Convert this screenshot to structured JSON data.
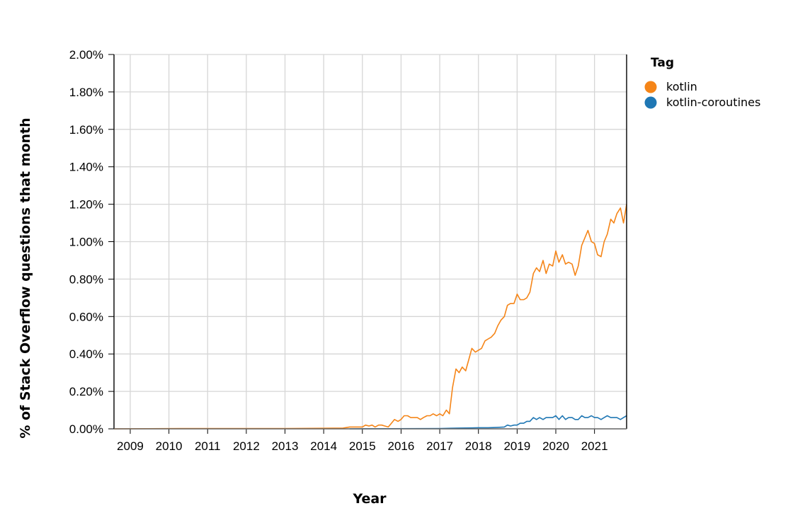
{
  "chart_data": {
    "type": "line",
    "title": "",
    "xlabel": "Year",
    "ylabel": "% of Stack Overflow questions that month",
    "x_range": [
      2008.58,
      2021.83
    ],
    "ylim": [
      0,
      0.02
    ],
    "x_ticks": [
      2009,
      2010,
      2011,
      2012,
      2013,
      2014,
      2015,
      2016,
      2017,
      2018,
      2019,
      2020,
      2021
    ],
    "x_tick_labels": [
      "2009",
      "2010",
      "2011",
      "2012",
      "2013",
      "2014",
      "2015",
      "2016",
      "2017",
      "2018",
      "2019",
      "2020",
      "2021"
    ],
    "y_ticks": [
      0,
      0.002,
      0.004,
      0.006,
      0.008,
      0.01,
      0.012,
      0.014,
      0.016,
      0.018,
      0.02
    ],
    "y_tick_labels": [
      "0.00%",
      "0.20%",
      "0.40%",
      "0.60%",
      "0.80%",
      "1.00%",
      "1.20%",
      "1.40%",
      "1.60%",
      "1.80%",
      "2.00%"
    ],
    "grid": true,
    "legend": {
      "title": "Tag",
      "position": "right"
    },
    "series": [
      {
        "name": "kotlin",
        "color": "#f58518",
        "points": [
          [
            2008.58,
            0.0
          ],
          [
            2010.33,
            2e-05
          ],
          [
            2011.0,
            2e-05
          ],
          [
            2012.0,
            2e-05
          ],
          [
            2013.0,
            2e-05
          ],
          [
            2014.0,
            3e-05
          ],
          [
            2014.5,
            4e-05
          ],
          [
            2014.67,
            0.0001
          ],
          [
            2014.83,
            0.0001
          ],
          [
            2015.0,
            0.0001
          ],
          [
            2015.08,
            0.0002
          ],
          [
            2015.17,
            0.00015
          ],
          [
            2015.25,
            0.0002
          ],
          [
            2015.33,
            0.0001
          ],
          [
            2015.42,
            0.0002
          ],
          [
            2015.5,
            0.0002
          ],
          [
            2015.58,
            0.00015
          ],
          [
            2015.67,
            0.0001
          ],
          [
            2015.75,
            0.0003
          ],
          [
            2015.83,
            0.0005
          ],
          [
            2015.92,
            0.0004
          ],
          [
            2016.0,
            0.0005
          ],
          [
            2016.08,
            0.0007
          ],
          [
            2016.17,
            0.0007
          ],
          [
            2016.25,
            0.0006
          ],
          [
            2016.33,
            0.0006
          ],
          [
            2016.42,
            0.0006
          ],
          [
            2016.5,
            0.0005
          ],
          [
            2016.58,
            0.0006
          ],
          [
            2016.67,
            0.0007
          ],
          [
            2016.75,
            0.0007
          ],
          [
            2016.83,
            0.0008
          ],
          [
            2016.92,
            0.0007
          ],
          [
            2017.0,
            0.0008
          ],
          [
            2017.08,
            0.0007
          ],
          [
            2017.17,
            0.001
          ],
          [
            2017.25,
            0.0008
          ],
          [
            2017.33,
            0.0022
          ],
          [
            2017.42,
            0.0032
          ],
          [
            2017.5,
            0.003
          ],
          [
            2017.58,
            0.0033
          ],
          [
            2017.67,
            0.0031
          ],
          [
            2017.75,
            0.0037
          ],
          [
            2017.83,
            0.0043
          ],
          [
            2017.92,
            0.0041
          ],
          [
            2018.0,
            0.0042
          ],
          [
            2018.08,
            0.0043
          ],
          [
            2018.17,
            0.0047
          ],
          [
            2018.25,
            0.0048
          ],
          [
            2018.33,
            0.0049
          ],
          [
            2018.42,
            0.0051
          ],
          [
            2018.5,
            0.0055
          ],
          [
            2018.58,
            0.0058
          ],
          [
            2018.67,
            0.006
          ],
          [
            2018.75,
            0.0066
          ],
          [
            2018.83,
            0.0067
          ],
          [
            2018.92,
            0.0067
          ],
          [
            2019.0,
            0.0072
          ],
          [
            2019.08,
            0.0069
          ],
          [
            2019.17,
            0.0069
          ],
          [
            2019.25,
            0.007
          ],
          [
            2019.33,
            0.0073
          ],
          [
            2019.42,
            0.0083
          ],
          [
            2019.5,
            0.0086
          ],
          [
            2019.58,
            0.0084
          ],
          [
            2019.67,
            0.009
          ],
          [
            2019.75,
            0.0083
          ],
          [
            2019.83,
            0.0088
          ],
          [
            2019.92,
            0.0087
          ],
          [
            2020.0,
            0.0095
          ],
          [
            2020.08,
            0.0089
          ],
          [
            2020.17,
            0.0093
          ],
          [
            2020.25,
            0.0088
          ],
          [
            2020.33,
            0.0089
          ],
          [
            2020.42,
            0.0088
          ],
          [
            2020.5,
            0.0082
          ],
          [
            2020.58,
            0.0087
          ],
          [
            2020.67,
            0.0098
          ],
          [
            2020.75,
            0.0102
          ],
          [
            2020.83,
            0.0106
          ],
          [
            2020.92,
            0.01
          ],
          [
            2021.0,
            0.0099
          ],
          [
            2021.08,
            0.0093
          ],
          [
            2021.17,
            0.0092
          ],
          [
            2021.25,
            0.01
          ],
          [
            2021.33,
            0.0104
          ],
          [
            2021.42,
            0.0112
          ],
          [
            2021.5,
            0.011
          ],
          [
            2021.58,
            0.0115
          ],
          [
            2021.67,
            0.0118
          ],
          [
            2021.75,
            0.011
          ],
          [
            2021.83,
            0.012
          ]
        ]
      },
      {
        "name": "kotlin-coroutines",
        "color": "#1f77b4",
        "points": [
          [
            2014.67,
            0.0
          ],
          [
            2017.0,
            2e-05
          ],
          [
            2017.5,
            4e-05
          ],
          [
            2017.83,
            5e-05
          ],
          [
            2018.0,
            6e-05
          ],
          [
            2018.25,
            6e-05
          ],
          [
            2018.5,
            8e-05
          ],
          [
            2018.67,
            0.0001
          ],
          [
            2018.75,
            0.0002
          ],
          [
            2018.83,
            0.00015
          ],
          [
            2018.92,
            0.0002
          ],
          [
            2019.0,
            0.0002
          ],
          [
            2019.08,
            0.0003
          ],
          [
            2019.17,
            0.0003
          ],
          [
            2019.25,
            0.0004
          ],
          [
            2019.33,
            0.0004
          ],
          [
            2019.42,
            0.0006
          ],
          [
            2019.5,
            0.0005
          ],
          [
            2019.58,
            0.0006
          ],
          [
            2019.67,
            0.0005
          ],
          [
            2019.75,
            0.0006
          ],
          [
            2019.83,
            0.0006
          ],
          [
            2019.92,
            0.0006
          ],
          [
            2020.0,
            0.0007
          ],
          [
            2020.08,
            0.0005
          ],
          [
            2020.17,
            0.0007
          ],
          [
            2020.25,
            0.0005
          ],
          [
            2020.33,
            0.0006
          ],
          [
            2020.42,
            0.0006
          ],
          [
            2020.5,
            0.0005
          ],
          [
            2020.58,
            0.0005
          ],
          [
            2020.67,
            0.0007
          ],
          [
            2020.75,
            0.0006
          ],
          [
            2020.83,
            0.0006
          ],
          [
            2020.92,
            0.0007
          ],
          [
            2021.0,
            0.0006
          ],
          [
            2021.08,
            0.0006
          ],
          [
            2021.17,
            0.0005
          ],
          [
            2021.25,
            0.0006
          ],
          [
            2021.33,
            0.0007
          ],
          [
            2021.42,
            0.0006
          ],
          [
            2021.5,
            0.0006
          ],
          [
            2021.58,
            0.0006
          ],
          [
            2021.67,
            0.0005
          ],
          [
            2021.75,
            0.0006
          ],
          [
            2021.83,
            0.0007
          ]
        ]
      }
    ]
  }
}
